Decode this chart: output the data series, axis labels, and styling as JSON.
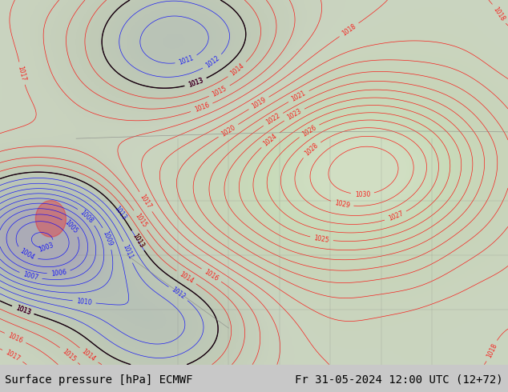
{
  "title_left": "Surface pressure [hPa] ECMWF",
  "title_right": "Fr 31-05-2024 12:00 UTC (12+72)",
  "bg_color": "#e8e8e8",
  "footer_bg": "#d0d0d0",
  "map_bg": "#c8c8c8",
  "font_size_footer": 10,
  "contour_interval": 1,
  "pressure_min": 998,
  "pressure_max": 1030,
  "figsize": [
    6.34,
    4.9
  ],
  "dpi": 100
}
